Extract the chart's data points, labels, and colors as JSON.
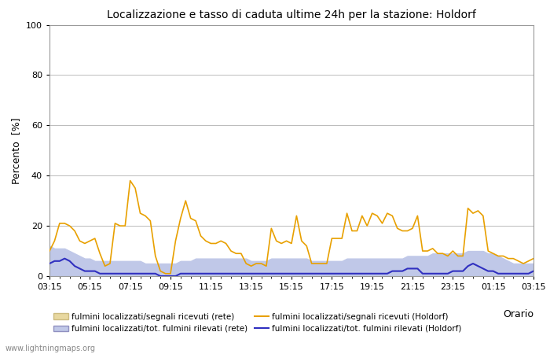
{
  "title": "Localizzazione e tasso di caduta ultime 24h per la stazione: Holdorf",
  "ylabel": "Percento  [%]",
  "xlabel": "Orario",
  "ylim": [
    0,
    100
  ],
  "yticks": [
    0,
    20,
    40,
    60,
    80,
    100
  ],
  "x_labels": [
    "03:15",
    "05:15",
    "07:15",
    "09:15",
    "11:15",
    "13:15",
    "15:15",
    "17:15",
    "19:15",
    "21:15",
    "23:15",
    "01:15",
    "03:15"
  ],
  "watermark": "www.lightningmaps.org",
  "n_points": 97,
  "orange_line": [
    10,
    14,
    21,
    21,
    20,
    18,
    14,
    13,
    14,
    15,
    9,
    4,
    5,
    21,
    20,
    20,
    38,
    35,
    25,
    24,
    22,
    8,
    2,
    1,
    1,
    14,
    23,
    30,
    23,
    22,
    16,
    14,
    13,
    13,
    14,
    13,
    10,
    9,
    9,
    5,
    4,
    5,
    5,
    4,
    19,
    14,
    13,
    14,
    13,
    24,
    14,
    12,
    5,
    5,
    5,
    5,
    15,
    15,
    15,
    25,
    18,
    18,
    24,
    20,
    25,
    24,
    21,
    25,
    24,
    19,
    18,
    18,
    19,
    24,
    10,
    10,
    11,
    9,
    9,
    8,
    10,
    8,
    8,
    27,
    25,
    26,
    24,
    10,
    9,
    8,
    8,
    7,
    7,
    6,
    5,
    6,
    7
  ],
  "blue_line": [
    5,
    6,
    6,
    7,
    6,
    4,
    3,
    2,
    2,
    2,
    1,
    1,
    1,
    1,
    1,
    1,
    1,
    1,
    1,
    1,
    1,
    1,
    0,
    0,
    0,
    0,
    1,
    1,
    1,
    1,
    1,
    1,
    1,
    1,
    1,
    1,
    1,
    1,
    1,
    1,
    1,
    1,
    1,
    1,
    1,
    1,
    1,
    1,
    1,
    1,
    1,
    1,
    1,
    1,
    1,
    1,
    1,
    1,
    1,
    1,
    1,
    1,
    1,
    1,
    1,
    1,
    1,
    1,
    2,
    2,
    2,
    3,
    3,
    3,
    1,
    1,
    1,
    1,
    1,
    1,
    2,
    2,
    2,
    4,
    5,
    4,
    3,
    2,
    2,
    1,
    1,
    1,
    1,
    1,
    1,
    1,
    2
  ],
  "orange_fill": [
    3,
    4,
    4,
    4,
    4,
    3,
    3,
    3,
    3,
    3,
    2,
    2,
    2,
    3,
    3,
    3,
    4,
    4,
    4,
    4,
    4,
    3,
    2,
    1,
    1,
    2,
    3,
    3,
    3,
    3,
    3,
    3,
    3,
    3,
    3,
    3,
    3,
    3,
    2,
    2,
    2,
    2,
    2,
    2,
    3,
    3,
    3,
    3,
    3,
    3,
    3,
    3,
    2,
    2,
    2,
    2,
    3,
    3,
    3,
    3,
    3,
    3,
    3,
    3,
    3,
    3,
    3,
    3,
    3,
    3,
    3,
    3,
    3,
    3,
    2,
    2,
    2,
    2,
    2,
    2,
    2,
    2,
    2,
    3,
    3,
    3,
    3,
    2,
    2,
    2,
    2,
    2,
    2,
    2,
    2,
    2,
    2
  ],
  "blue_fill": [
    12,
    11,
    11,
    11,
    10,
    9,
    8,
    7,
    7,
    6,
    6,
    6,
    6,
    6,
    6,
    6,
    6,
    6,
    6,
    5,
    5,
    5,
    5,
    5,
    5,
    5,
    6,
    6,
    6,
    7,
    7,
    7,
    7,
    7,
    7,
    7,
    7,
    7,
    7,
    7,
    6,
    6,
    6,
    6,
    7,
    7,
    7,
    7,
    7,
    7,
    7,
    7,
    6,
    6,
    6,
    6,
    6,
    6,
    6,
    7,
    7,
    7,
    7,
    7,
    7,
    7,
    7,
    7,
    7,
    7,
    7,
    8,
    8,
    8,
    8,
    8,
    9,
    9,
    9,
    9,
    9,
    9,
    9,
    10,
    10,
    10,
    10,
    9,
    9,
    8,
    7,
    6,
    5,
    5,
    5,
    5,
    5
  ],
  "fig_width": 7.0,
  "fig_height": 4.5,
  "dpi": 100,
  "title_fontsize": 10,
  "axis_fontsize": 8,
  "legend_fontsize": 7.5,
  "orange_line_color": "#e8a000",
  "blue_line_color": "#3030c0",
  "orange_fill_color": "#e8d8a0",
  "blue_fill_color": "#c0c8e8",
  "grid_color": "#bbbbbb",
  "spine_color": "#999999",
  "watermark_color": "#888888"
}
